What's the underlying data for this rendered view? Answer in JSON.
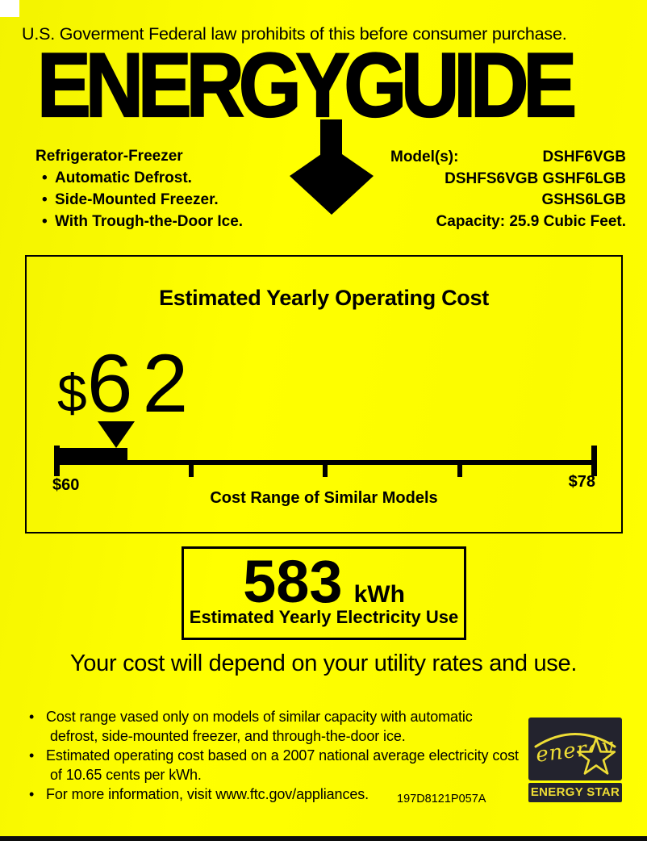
{
  "label": {
    "bullet_char": "•",
    "disclaimer": "U.S. Goverment Federal law prohibits of this before consumer purchase.",
    "logo_text": "ENERGYGUIDE",
    "product": {
      "type": "Refrigerator-Freezer",
      "features": [
        "Automatic Defrost.",
        "Side-Mounted Freezer.",
        "With Trough-the-Door Ice."
      ]
    },
    "models": {
      "label": "Model(s):",
      "primary": "DSHF6VGB",
      "additional": "DSHFS6VGB GSHF6LGB GSHS6LGB",
      "capacity": "Capacity: 25.9 Cubic Feet."
    },
    "cost_box": {
      "title": "Estimated Yearly Operating Cost",
      "currency_symbol": "$",
      "cost_value_text": "62",
      "scale": {
        "min": 60,
        "max": 78,
        "value": 62,
        "min_label": "$60",
        "max_label": "$78",
        "caption": "Cost Range of Similar Models"
      }
    },
    "usage_box": {
      "value": "583",
      "unit": "kWh",
      "caption": "Estimated Yearly Electricity Use"
    },
    "note": "Your cost will depend on your utility rates and use.",
    "footnotes": [
      {
        "lines": [
          "Cost range vased only on models of similar capacity with automatic",
          "defrost, side-mounted freezer, and through-the-door ice."
        ]
      },
      {
        "lines": [
          "Estimated operating cost based on a 2007 national average electricity cost",
          "of 10.65 cents per kWh."
        ]
      },
      {
        "lines": [
          "For more information, visit www.ftc.gov/appliances."
        ]
      }
    ],
    "part_number": "197D8121P057A",
    "energy_star": {
      "script_text": "energy",
      "bar_text": "ENERGY STAR"
    },
    "colors": {
      "background": "#fbfb00",
      "ink": "#000000",
      "energy_star_bg": "#23232e",
      "energy_star_fg": "#eedd35"
    }
  }
}
